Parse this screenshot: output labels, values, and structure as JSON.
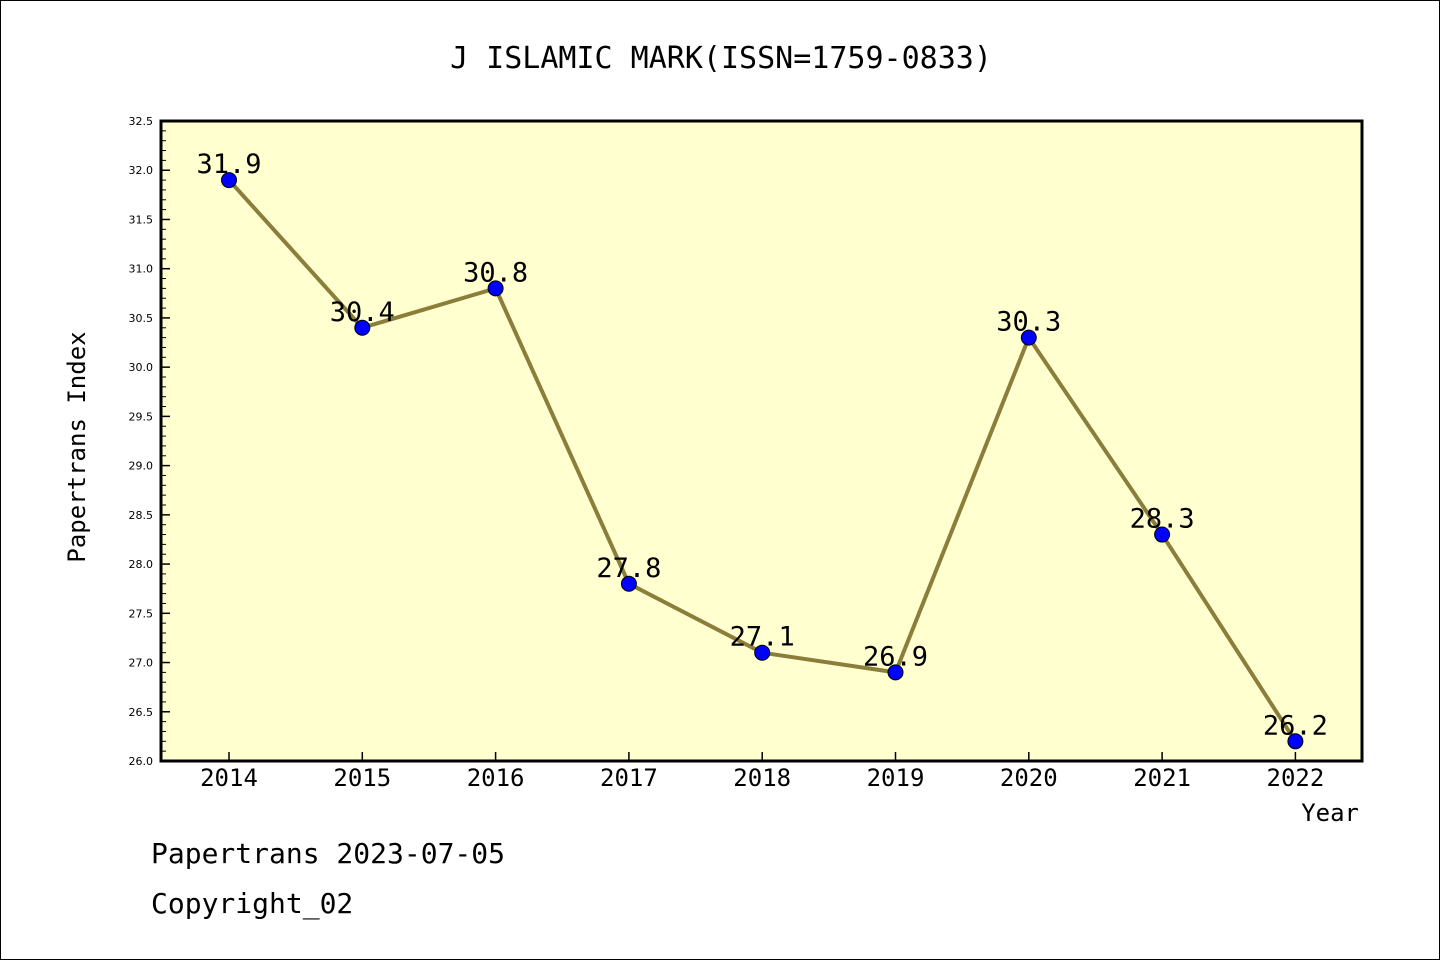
{
  "chart_data": {
    "type": "line",
    "title": "J ISLAMIC MARK(ISSN=1759-0833)",
    "xlabel": "Year",
    "ylabel": "Papertrans Index",
    "categories": [
      "2014",
      "2015",
      "2016",
      "2017",
      "2018",
      "2019",
      "2020",
      "2021",
      "2022"
    ],
    "values": [
      31.9,
      30.4,
      30.8,
      27.8,
      27.1,
      26.9,
      30.3,
      28.3,
      26.2
    ],
    "data_labels": [
      "31.9",
      "30.4",
      "30.8",
      "27.8",
      "27.1",
      "26.9",
      "30.3",
      "28.3",
      "26.2"
    ],
    "ylim": [
      26.0,
      32.5
    ],
    "y_ticks": [
      "26.0",
      "26.5",
      "27.0",
      "27.5",
      "28.0",
      "28.5",
      "29.0",
      "29.5",
      "30.0",
      "30.5",
      "31.0",
      "31.5",
      "32.0",
      "32.5"
    ],
    "grid": false,
    "colors": {
      "plot_background": "#ffffd0",
      "line": "#8b7d3a",
      "marker": "#0000ff"
    }
  },
  "footer": {
    "line1": "Papertrans 2023-07-05",
    "line2": "Copyright_02"
  }
}
